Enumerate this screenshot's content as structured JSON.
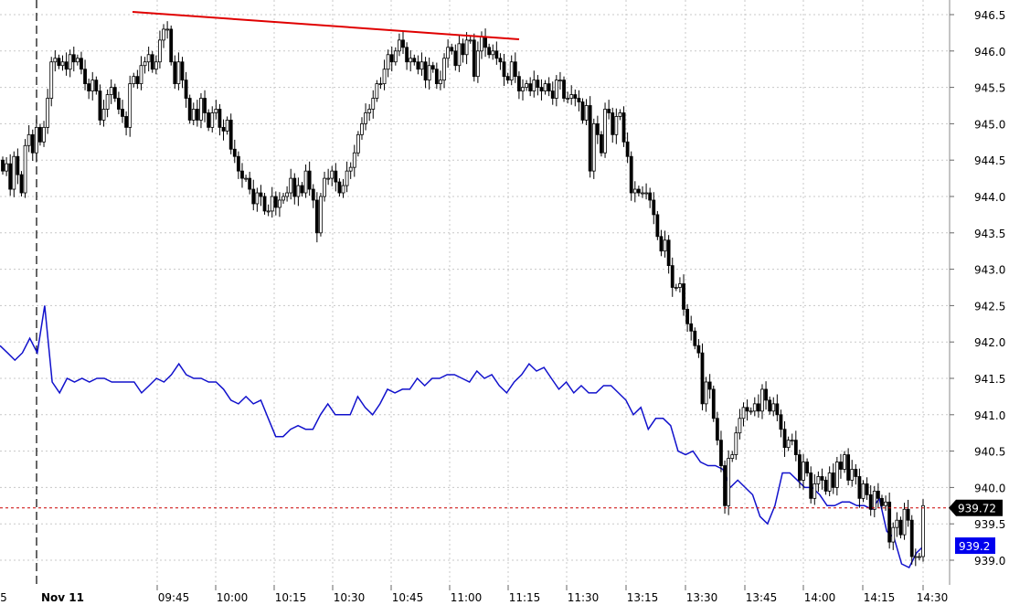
{
  "chart_data": {
    "type": "candlestick",
    "date_label": "Nov 11",
    "x_tick_labels": [
      "5",
      "09:45",
      "10:00",
      "10:15",
      "10:30",
      "10:45",
      "11:00",
      "11:15",
      "11:30",
      "13:15",
      "13:30",
      "13:45",
      "14:00",
      "14:15",
      "14:30"
    ],
    "y_tick_labels": [
      "946.5",
      "946.0",
      "945.5",
      "945.0",
      "944.5",
      "944.0",
      "943.5",
      "943.0",
      "942.5",
      "942.0",
      "941.5",
      "941.0",
      "940.5",
      "940.0",
      "939.5",
      "939.0"
    ],
    "ylim": [
      938.75,
      946.7
    ],
    "grid": true,
    "candle_closes": [
      944.35,
      944.45,
      944.1,
      944.55,
      944.3,
      944.05,
      944.7,
      944.85,
      944.6,
      944.95,
      944.75,
      944.95,
      945.35,
      945.85,
      945.9,
      945.8,
      945.85,
      945.75,
      945.95,
      945.85,
      945.9,
      945.75,
      945.55,
      945.45,
      945.6,
      945.45,
      945.05,
      945.2,
      945.4,
      945.5,
      945.35,
      945.2,
      945.1,
      944.95,
      945.55,
      945.65,
      945.55,
      945.8,
      945.85,
      945.95,
      945.75,
      945.85,
      946.15,
      946.3,
      946.3,
      945.85,
      945.55,
      945.85,
      945.6,
      945.35,
      945.05,
      945.2,
      945.05,
      945.35,
      945.15,
      944.95,
      945.15,
      945.2,
      944.95,
      944.9,
      945.05,
      944.65,
      944.55,
      944.35,
      944.25,
      944.25,
      944.1,
      943.9,
      944.05,
      944.0,
      943.8,
      943.8,
      944.0,
      943.85,
      943.95,
      944.0,
      944.05,
      944.25,
      944.0,
      944.15,
      944.05,
      944.35,
      944.1,
      943.95,
      943.5,
      944.0,
      944.25,
      944.25,
      944.35,
      944.2,
      944.05,
      944.15,
      944.35,
      944.4,
      944.6,
      944.85,
      945.0,
      945.15,
      945.2,
      945.35,
      945.55,
      945.55,
      945.75,
      945.95,
      945.85,
      946.0,
      946.15,
      946.05,
      945.85,
      945.9,
      945.85,
      945.75,
      945.85,
      945.6,
      945.8,
      945.75,
      945.55,
      945.6,
      945.9,
      946.05,
      946.0,
      945.8,
      946.1,
      945.95,
      946.15,
      946.15,
      945.65,
      946.0,
      946.2,
      946.05,
      945.95,
      946.0,
      945.9,
      945.85,
      945.65,
      945.6,
      945.85,
      945.65,
      945.45,
      945.5,
      945.55,
      945.45,
      945.6,
      945.5,
      945.45,
      945.55,
      945.45,
      945.35,
      945.6,
      945.6,
      945.35,
      945.35,
      945.4,
      945.35,
      945.3,
      945.05,
      945.25,
      944.35,
      945.0,
      944.85,
      944.6,
      945.2,
      945.15,
      944.85,
      945.1,
      945.15,
      944.75,
      944.55,
      944.05,
      944.1,
      944.05,
      944.05,
      944.05,
      943.95,
      943.75,
      943.45,
      943.25,
      943.4,
      943.05,
      942.75,
      942.75,
      942.8,
      942.45,
      942.25,
      942.15,
      941.95,
      941.85,
      941.15,
      941.45,
      941.35,
      940.95,
      940.65,
      940.3,
      939.75,
      940.4,
      940.45,
      940.75,
      940.95,
      941.1,
      941.05,
      941.05,
      941.15,
      941.05,
      941.35,
      941.2,
      941.05,
      941.15,
      941.0,
      940.8,
      940.55,
      940.65,
      940.65,
      940.45,
      940.1,
      940.35,
      940.2,
      939.85,
      940.05,
      940.15,
      940.1,
      939.95,
      940.2,
      940.0,
      940.35,
      940.25,
      940.45,
      940.1,
      940.25,
      940.15,
      939.85,
      940.05,
      939.9,
      939.7,
      939.95,
      939.85,
      939.75,
      939.8,
      939.25,
      939.45,
      939.55,
      939.35,
      939.7,
      939.55,
      939.05,
      939.05,
      939.05,
      939.75
    ],
    "candle_opens": [
      944.5,
      944.35,
      944.45,
      944.1,
      944.55,
      944.3,
      944.05,
      944.7,
      944.85,
      944.6,
      944.95,
      944.75,
      944.95,
      945.35,
      945.85,
      945.9,
      945.8,
      945.85,
      945.75,
      945.95,
      945.85,
      945.9,
      945.75,
      945.55,
      945.45,
      945.6,
      945.45,
      945.05,
      945.2,
      945.4,
      945.5,
      945.35,
      945.2,
      945.1,
      944.95,
      945.55,
      945.65,
      945.55,
      945.8,
      945.85,
      945.95,
      945.75,
      945.85,
      946.15,
      946.3,
      946.3,
      945.85,
      945.55,
      945.85,
      945.6,
      945.35,
      945.05,
      945.2,
      945.05,
      945.35,
      945.15,
      944.95,
      945.15,
      945.2,
      944.95,
      944.9,
      945.05,
      944.65,
      944.55,
      944.35,
      944.25,
      944.25,
      944.1,
      943.9,
      944.05,
      944.0,
      943.8,
      943.8,
      944.0,
      943.85,
      943.95,
      944.0,
      944.05,
      944.25,
      944.0,
      944.15,
      944.05,
      944.35,
      944.1,
      943.95,
      943.5,
      944.0,
      944.25,
      944.25,
      944.35,
      944.2,
      944.05,
      944.15,
      944.35,
      944.4,
      944.6,
      944.85,
      945.0,
      945.15,
      945.2,
      945.35,
      945.55,
      945.55,
      945.75,
      945.95,
      945.85,
      946.0,
      946.15,
      946.05,
      945.85,
      945.9,
      945.85,
      945.75,
      945.85,
      945.6,
      945.8,
      945.75,
      945.55,
      945.6,
      945.9,
      946.05,
      946.0,
      945.8,
      946.1,
      945.95,
      946.15,
      946.15,
      945.65,
      946.0,
      946.2,
      946.05,
      945.95,
      946.0,
      945.9,
      945.85,
      945.65,
      945.6,
      945.85,
      945.65,
      945.45,
      945.5,
      945.55,
      945.45,
      945.6,
      945.5,
      945.45,
      945.55,
      945.45,
      945.35,
      945.6,
      945.6,
      945.35,
      945.35,
      945.4,
      945.35,
      945.3,
      945.05,
      945.25,
      944.35,
      945.0,
      944.85,
      944.6,
      945.2,
      945.15,
      944.85,
      945.1,
      945.15,
      944.75,
      944.55,
      944.05,
      944.1,
      944.05,
      944.05,
      944.05,
      943.95,
      943.75,
      943.45,
      943.25,
      943.4,
      943.05,
      942.75,
      942.75,
      942.8,
      942.45,
      942.25,
      942.15,
      941.95,
      941.85,
      941.15,
      941.45,
      941.35,
      940.95,
      940.65,
      940.3,
      939.75,
      940.4,
      940.45,
      940.75,
      940.95,
      941.1,
      941.05,
      941.05,
      941.15,
      941.05,
      941.35,
      941.2,
      941.05,
      941.15,
      941.0,
      940.8,
      940.55,
      940.65,
      940.65,
      940.45,
      940.1,
      940.35,
      940.2,
      939.85,
      940.05,
      940.15,
      940.1,
      939.95,
      940.2,
      940.0,
      940.35,
      940.25,
      940.45,
      940.1,
      940.25,
      940.15,
      939.85,
      940.05,
      939.9,
      939.7,
      939.95,
      939.85,
      939.75,
      939.8,
      939.25,
      939.45,
      939.55,
      939.35,
      939.7,
      939.55,
      939.05,
      939.05,
      939.05
    ],
    "blue_line": [
      941.95,
      941.85,
      941.75,
      941.85,
      942.05,
      941.85,
      942.5,
      941.45,
      941.3,
      941.5,
      941.45,
      941.5,
      941.45,
      941.5,
      941.5,
      941.45,
      941.45,
      941.45,
      941.45,
      941.3,
      941.4,
      941.5,
      941.45,
      941.55,
      941.7,
      941.55,
      941.5,
      941.5,
      941.45,
      941.45,
      941.35,
      941.2,
      941.15,
      941.25,
      941.15,
      941.2,
      940.95,
      940.7,
      940.7,
      940.8,
      940.85,
      940.8,
      940.8,
      941.0,
      941.15,
      941.0,
      941.0,
      941.0,
      941.25,
      941.1,
      941.0,
      941.15,
      941.35,
      941.3,
      941.35,
      941.35,
      941.5,
      941.4,
      941.5,
      941.5,
      941.55,
      941.55,
      941.5,
      941.45,
      941.6,
      941.5,
      941.55,
      941.4,
      941.3,
      941.45,
      941.55,
      941.7,
      941.6,
      941.65,
      941.5,
      941.35,
      941.45,
      941.3,
      941.4,
      941.3,
      941.3,
      941.4,
      941.4,
      941.3,
      941.2,
      941.0,
      941.1,
      940.8,
      940.95,
      940.95,
      940.85,
      940.5,
      940.45,
      940.5,
      940.35,
      940.3,
      940.3,
      940.25,
      940.0,
      940.1,
      940.0,
      939.9,
      939.6,
      939.5,
      939.75,
      940.2,
      940.2,
      940.1,
      940.0,
      940.0,
      939.9,
      939.75,
      939.75,
      939.8,
      939.8,
      939.75,
      939.75,
      939.7,
      939.85,
      939.4,
      939.3,
      938.95,
      938.9,
      939.1,
      939.2
    ],
    "badges": [
      {
        "label": "939.72",
        "value": 939.72,
        "bg": "#000000"
      },
      {
        "label": "939.2",
        "value": 939.2,
        "bg": "#0000ee"
      }
    ],
    "colors": {
      "candle": "#000000",
      "blue_line": "#1111cc",
      "trendline": "#e00000",
      "grid": "#c8c8c8",
      "current_price_line": "#cc0000"
    }
  }
}
